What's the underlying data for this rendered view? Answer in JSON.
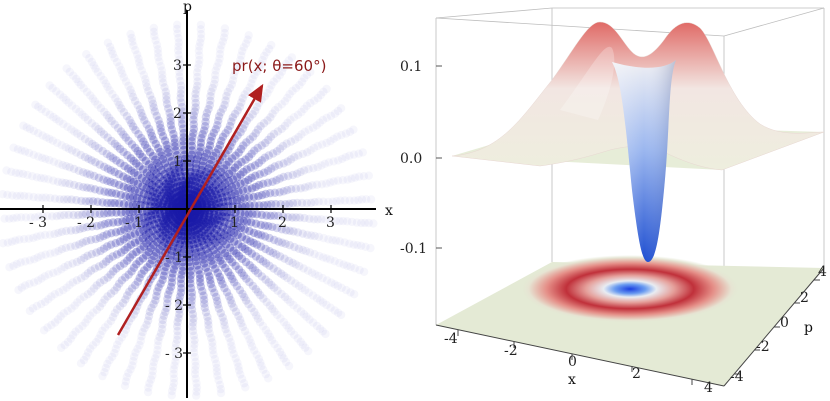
{
  "left_panel": {
    "x_axis_label": "x",
    "p_axis_label": "p",
    "x_ticks": [
      {
        "label": "- 3",
        "value": -3
      },
      {
        "label": "- 2",
        "value": -2
      },
      {
        "label": "- 1",
        "value": -1
      },
      {
        "label": "1",
        "value": 1
      },
      {
        "label": "2",
        "value": 2
      },
      {
        "label": "3",
        "value": 3
      }
    ],
    "p_ticks": [
      {
        "label": "3",
        "value": 3
      },
      {
        "label": "2",
        "value": 2
      },
      {
        "label": "1",
        "value": 1
      },
      {
        "label": "- 1",
        "value": -1
      },
      {
        "label": "- 2",
        "value": -2
      },
      {
        "label": "- 3",
        "value": -3
      }
    ],
    "ray_count": 24,
    "ray_color": "#1a1aa8",
    "annotation": "pr(x; θ=60°)",
    "arrow_color": "#b02020",
    "arrow_angle_deg": 60
  },
  "right_panel": {
    "z_ticks": [
      {
        "label": "0.1",
        "value": 0.1
      },
      {
        "label": "0.0",
        "value": 0.0
      },
      {
        "label": "-0.1",
        "value": -0.1
      }
    ],
    "x_ticks": [
      {
        "label": "-4",
        "value": -4
      },
      {
        "label": "-2",
        "value": -2
      },
      {
        "label": "0",
        "value": 0
      },
      {
        "label": "2",
        "value": 2
      },
      {
        "label": "4",
        "value": 4
      }
    ],
    "p_ticks": [
      {
        "label": "4",
        "value": 4
      },
      {
        "label": "2",
        "value": 2
      },
      {
        "label": "0",
        "value": 0
      },
      {
        "label": "-2",
        "value": -2
      },
      {
        "label": "-4",
        "value": -4
      }
    ],
    "x_axis_label": "x",
    "p_axis_label": "p",
    "colors": {
      "peak": "#d9534f",
      "dip": "#2a5bd7",
      "plane": "#e4ead5"
    }
  }
}
